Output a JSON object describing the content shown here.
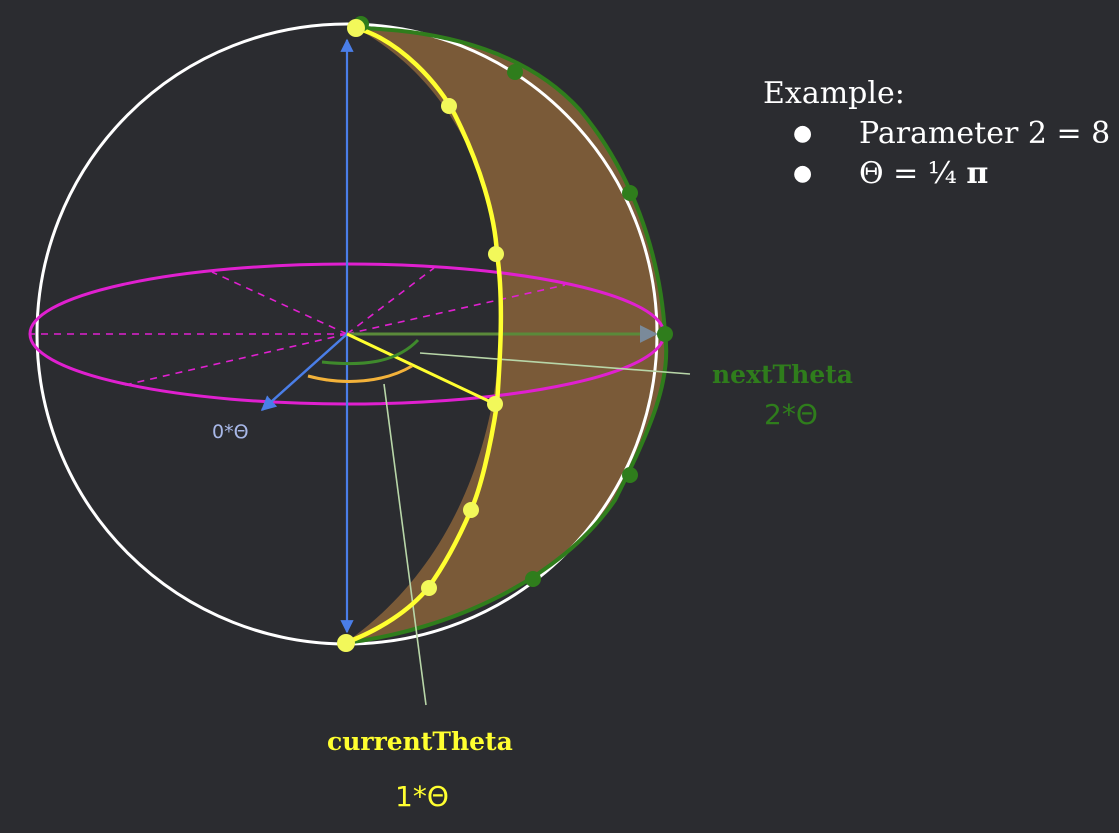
{
  "legend": {
    "title": "Example:",
    "items": [
      {
        "text": "Parameter 2 = 8"
      },
      {
        "text": "Θ = ¼ ",
        "math": "π"
      }
    ]
  },
  "labels": {
    "zero": "0*Θ",
    "next_name": "nextTheta",
    "next_value": "2*Θ",
    "current_name": "currentTheta",
    "current_value": "1*Θ"
  },
  "colors": {
    "background": "#2b2c30",
    "sphere_outline": "#ffffff",
    "equator": "#e020d0",
    "axis": "#4a7ee8",
    "current": "#ffff30",
    "next": "#2f7d1c",
    "wedge_fill": "#7a5a38",
    "current_angle_arc": "#f3b23a",
    "zero_label": "#a8b8e8",
    "pointer_line": "#b8d6a8"
  }
}
